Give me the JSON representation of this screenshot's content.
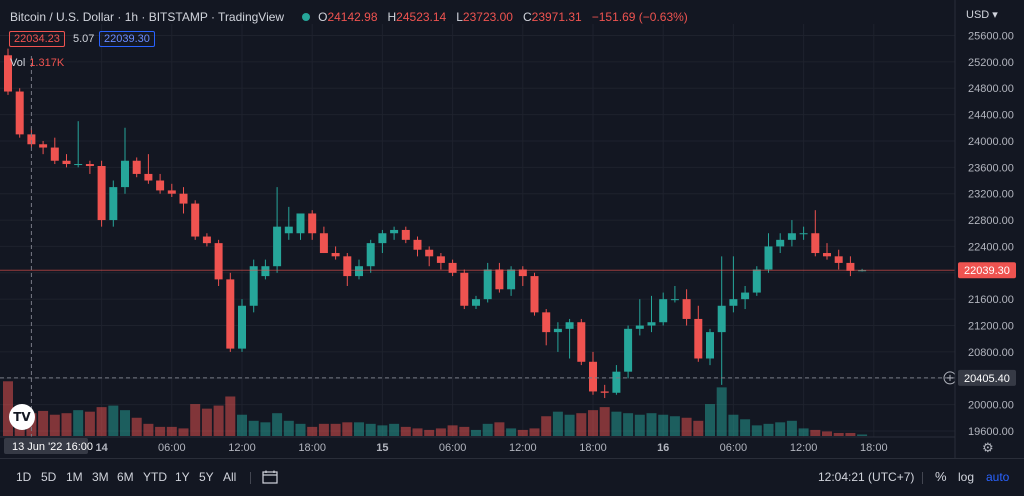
{
  "legend": {
    "symbol": "Bitcoin / U.S. Dollar · 1h · BITSTAMP · TradingView",
    "open_label": "O",
    "open": "24142.98",
    "high_label": "H",
    "high": "24523.14",
    "low_label": "L",
    "low": "23723.00",
    "close_label": "C",
    "close": "23971.31",
    "change": "−151.69 (−0.63%)"
  },
  "quote": {
    "sell": "22034.23",
    "spread": "5.07",
    "buy": "22039.30"
  },
  "volume": {
    "label": "Vol",
    "value": "1.317K"
  },
  "currency": "USD",
  "colors": {
    "up": "#26a69a",
    "down": "#ef5350",
    "background": "#131722",
    "accent": "#2962ff"
  },
  "price_scale": {
    "ticks": [
      "25600.00",
      "25200.00",
      "24800.00",
      "24400.00",
      "24000.00",
      "23600.00",
      "23200.00",
      "22800.00",
      "22400.00",
      "22000.00",
      "21600.00",
      "21200.00",
      "20800.00",
      "20400.00",
      "20000.00",
      "19600.00"
    ],
    "last_price": "22039.30",
    "crosshair_price": "20405.40"
  },
  "time_scale": {
    "ticks": [
      "14",
      "06:00",
      "12:00",
      "18:00",
      "15",
      "06:00",
      "12:00",
      "18:00",
      "16",
      "06:00",
      "12:00",
      "18:00"
    ],
    "crosshair_label": "13 Jun '22  16:00"
  },
  "chart_data": {
    "type": "candlestick",
    "interval": "1h",
    "ylim": [
      19550,
      25800
    ],
    "candles": [
      {
        "o": 25300,
        "h": 25400,
        "l": 24700,
        "c": 24750
      },
      {
        "o": 24750,
        "h": 24800,
        "l": 24050,
        "c": 24100
      },
      {
        "o": 24100,
        "h": 24200,
        "l": 23900,
        "c": 23950
      },
      {
        "o": 23950,
        "h": 24000,
        "l": 23800,
        "c": 23900
      },
      {
        "o": 23900,
        "h": 24050,
        "l": 23650,
        "c": 23700
      },
      {
        "o": 23700,
        "h": 23800,
        "l": 23600,
        "c": 23650
      },
      {
        "o": 23650,
        "h": 24300,
        "l": 23600,
        "c": 23650
      },
      {
        "o": 23650,
        "h": 23700,
        "l": 23500,
        "c": 23620
      },
      {
        "o": 23620,
        "h": 23700,
        "l": 22700,
        "c": 22800
      },
      {
        "o": 22800,
        "h": 23400,
        "l": 22700,
        "c": 23300
      },
      {
        "o": 23300,
        "h": 24200,
        "l": 23200,
        "c": 23700
      },
      {
        "o": 23700,
        "h": 23750,
        "l": 23450,
        "c": 23500
      },
      {
        "o": 23500,
        "h": 23800,
        "l": 23350,
        "c": 23400
      },
      {
        "o": 23400,
        "h": 23500,
        "l": 23200,
        "c": 23250
      },
      {
        "o": 23250,
        "h": 23350,
        "l": 23150,
        "c": 23200
      },
      {
        "o": 23200,
        "h": 23300,
        "l": 22900,
        "c": 23050
      },
      {
        "o": 23050,
        "h": 23100,
        "l": 22500,
        "c": 22550
      },
      {
        "o": 22550,
        "h": 22600,
        "l": 22400,
        "c": 22450
      },
      {
        "o": 22450,
        "h": 22500,
        "l": 21800,
        "c": 21900
      },
      {
        "o": 21900,
        "h": 22000,
        "l": 20800,
        "c": 20850
      },
      {
        "o": 20850,
        "h": 21600,
        "l": 20800,
        "c": 21500
      },
      {
        "o": 21500,
        "h": 22200,
        "l": 21400,
        "c": 22100
      },
      {
        "o": 21950,
        "h": 22200,
        "l": 21900,
        "c": 22100
      },
      {
        "o": 22100,
        "h": 23300,
        "l": 22000,
        "c": 22700
      },
      {
        "o": 22600,
        "h": 23000,
        "l": 22500,
        "c": 22700
      },
      {
        "o": 22600,
        "h": 22900,
        "l": 22500,
        "c": 22900
      },
      {
        "o": 22900,
        "h": 22950,
        "l": 22500,
        "c": 22600
      },
      {
        "o": 22600,
        "h": 22700,
        "l": 22300,
        "c": 22300
      },
      {
        "o": 22300,
        "h": 22400,
        "l": 22200,
        "c": 22250
      },
      {
        "o": 22250,
        "h": 22300,
        "l": 21800,
        "c": 21950
      },
      {
        "o": 21950,
        "h": 22200,
        "l": 21900,
        "c": 22100
      },
      {
        "o": 22100,
        "h": 22500,
        "l": 22000,
        "c": 22450
      },
      {
        "o": 22450,
        "h": 22650,
        "l": 22300,
        "c": 22600
      },
      {
        "o": 22600,
        "h": 22700,
        "l": 22500,
        "c": 22650
      },
      {
        "o": 22650,
        "h": 22700,
        "l": 22450,
        "c": 22500
      },
      {
        "o": 22500,
        "h": 22550,
        "l": 22250,
        "c": 22350
      },
      {
        "o": 22350,
        "h": 22400,
        "l": 22100,
        "c": 22250
      },
      {
        "o": 22250,
        "h": 22300,
        "l": 22050,
        "c": 22150
      },
      {
        "o": 22150,
        "h": 22200,
        "l": 21950,
        "c": 22000
      },
      {
        "o": 22000,
        "h": 22050,
        "l": 21450,
        "c": 21500
      },
      {
        "o": 21500,
        "h": 21650,
        "l": 21450,
        "c": 21600
      },
      {
        "o": 21600,
        "h": 22150,
        "l": 21550,
        "c": 22050
      },
      {
        "o": 22050,
        "h": 22150,
        "l": 21700,
        "c": 21750
      },
      {
        "o": 21750,
        "h": 22100,
        "l": 21650,
        "c": 22050
      },
      {
        "o": 22050,
        "h": 22100,
        "l": 21800,
        "c": 21950
      },
      {
        "o": 21950,
        "h": 22000,
        "l": 21350,
        "c": 21400
      },
      {
        "o": 21400,
        "h": 21450,
        "l": 20900,
        "c": 21100
      },
      {
        "o": 21100,
        "h": 21250,
        "l": 20800,
        "c": 21150
      },
      {
        "o": 21150,
        "h": 21300,
        "l": 20700,
        "c": 21250
      },
      {
        "o": 21250,
        "h": 21300,
        "l": 20600,
        "c": 20650
      },
      {
        "o": 20650,
        "h": 20800,
        "l": 20150,
        "c": 20200
      },
      {
        "o": 20200,
        "h": 20300,
        "l": 20100,
        "c": 20180
      },
      {
        "o": 20180,
        "h": 20600,
        "l": 20150,
        "c": 20500
      },
      {
        "o": 20500,
        "h": 21200,
        "l": 20400,
        "c": 21150
      },
      {
        "o": 21150,
        "h": 21600,
        "l": 21050,
        "c": 21200
      },
      {
        "o": 21200,
        "h": 21650,
        "l": 21100,
        "c": 21250
      },
      {
        "o": 21250,
        "h": 21700,
        "l": 21200,
        "c": 21600
      },
      {
        "o": 21600,
        "h": 21800,
        "l": 21550,
        "c": 21600
      },
      {
        "o": 21600,
        "h": 21750,
        "l": 21200,
        "c": 21300
      },
      {
        "o": 21300,
        "h": 21500,
        "l": 20650,
        "c": 20700
      },
      {
        "o": 20700,
        "h": 21150,
        "l": 20600,
        "c": 21100
      },
      {
        "o": 21100,
        "h": 22250,
        "l": 20300,
        "c": 21500
      },
      {
        "o": 21500,
        "h": 22250,
        "l": 21400,
        "c": 21600
      },
      {
        "o": 21600,
        "h": 21800,
        "l": 21450,
        "c": 21700
      },
      {
        "o": 21700,
        "h": 22100,
        "l": 21650,
        "c": 22050
      },
      {
        "o": 22050,
        "h": 22600,
        "l": 22000,
        "c": 22400
      },
      {
        "o": 22400,
        "h": 22600,
        "l": 22300,
        "c": 22500
      },
      {
        "o": 22500,
        "h": 22800,
        "l": 22400,
        "c": 22600
      },
      {
        "o": 22600,
        "h": 22700,
        "l": 22500,
        "c": 22600
      },
      {
        "o": 22600,
        "h": 22950,
        "l": 22250,
        "c": 22300
      },
      {
        "o": 22300,
        "h": 22450,
        "l": 22200,
        "c": 22250
      },
      {
        "o": 22250,
        "h": 22350,
        "l": 22050,
        "c": 22150
      },
      {
        "o": 22150,
        "h": 22250,
        "l": 21950,
        "c": 22030
      },
      {
        "o": 22030,
        "h": 22060,
        "l": 22020,
        "c": 22039
      }
    ],
    "volumes": [
      72,
      38,
      30,
      33,
      28,
      30,
      34,
      32,
      38,
      40,
      34,
      24,
      16,
      12,
      12,
      10,
      42,
      36,
      40,
      52,
      28,
      20,
      18,
      30,
      20,
      16,
      12,
      16,
      16,
      18,
      18,
      16,
      14,
      16,
      12,
      10,
      8,
      10,
      14,
      12,
      8,
      16,
      18,
      10,
      8,
      10,
      26,
      32,
      28,
      30,
      34,
      38,
      32,
      30,
      28,
      30,
      28,
      26,
      24,
      20,
      42,
      64,
      28,
      22,
      14,
      16,
      18,
      20,
      10,
      8,
      6,
      4,
      4,
      2
    ],
    "volume_ylim": [
      0,
      100
    ]
  },
  "bottom": {
    "ranges": [
      "1D",
      "5D",
      "1M",
      "3M",
      "6M",
      "YTD",
      "1Y",
      "5Y",
      "All"
    ],
    "clock": "12:04:21 (UTC+7)",
    "percent": "%",
    "log": "log",
    "auto": "auto"
  },
  "logo": "TV"
}
